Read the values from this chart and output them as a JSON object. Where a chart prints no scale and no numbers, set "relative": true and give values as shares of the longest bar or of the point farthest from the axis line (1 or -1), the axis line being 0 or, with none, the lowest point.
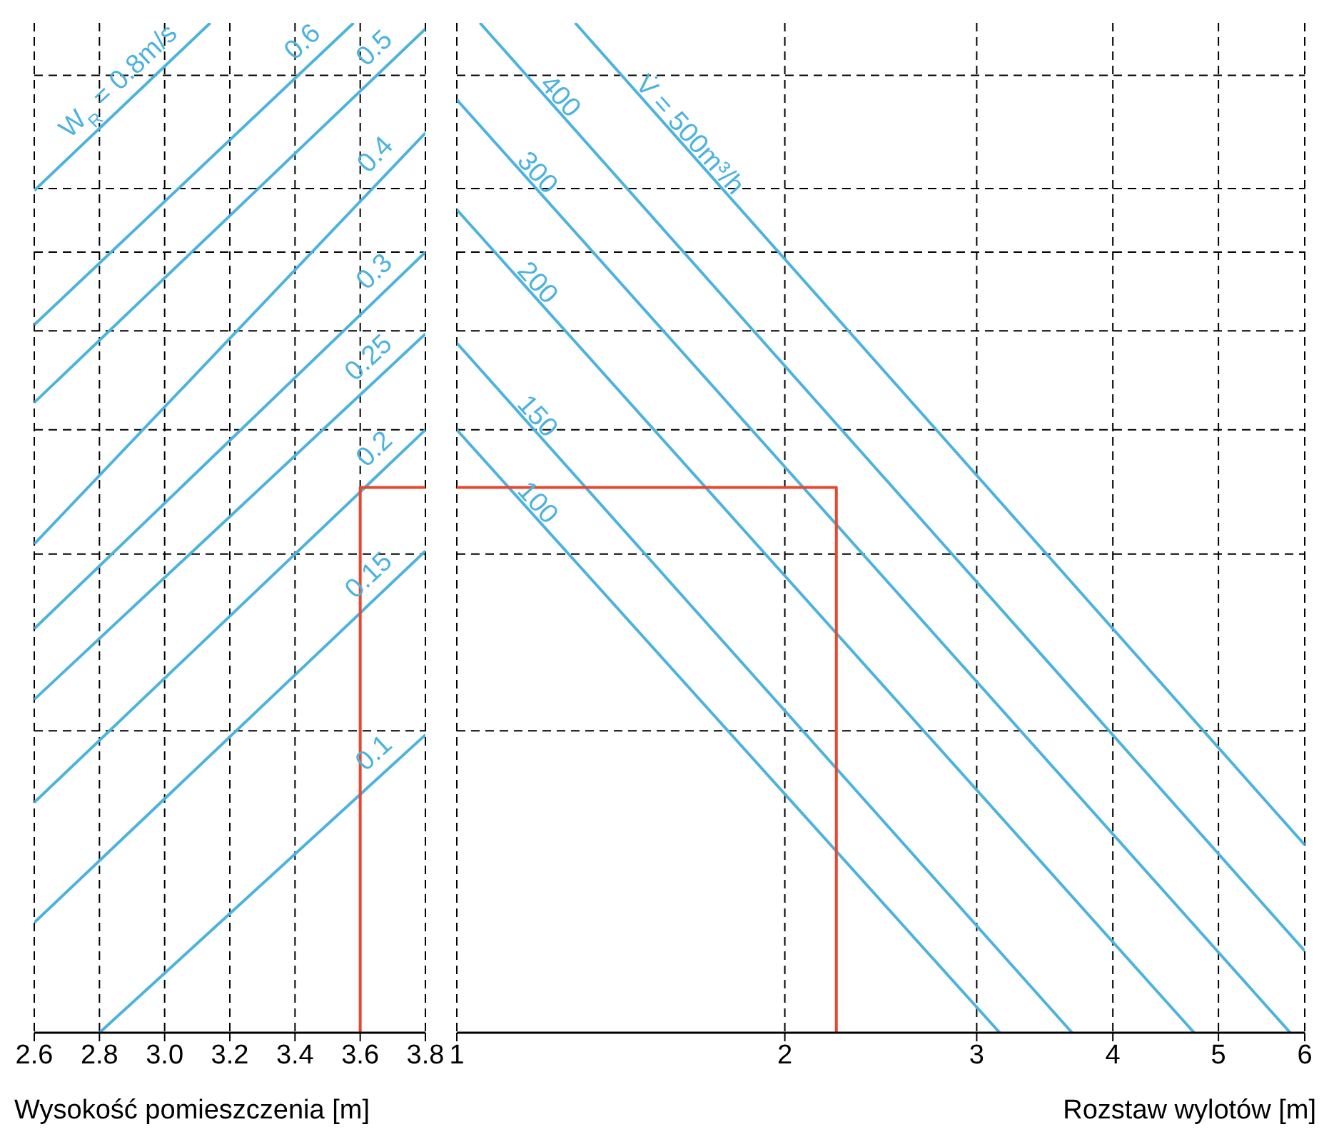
{
  "chart_data": [
    {
      "type": "line",
      "relative": true,
      "xlabel": "Wysokość pomieszczenia [m]",
      "xlim": [
        2.6,
        3.8
      ],
      "xticks": [
        2.6,
        2.8,
        {
          "value": 3,
          "label": "3.0"
        },
        3.2,
        3.4,
        3.6,
        3.8
      ],
      "grid": "x",
      "tick_labels": "x",
      "line_style": "solid",
      "series": [
        {
          "name": "W$_{R}$ = 0.8m/s",
          "color": "#4db3de",
          "x": [
            2.6,
            3.14
          ],
          "values": [
            0.834,
            1
          ]
        },
        {
          "name": "0.6",
          "color": "#4db3de",
          "x": [
            2.6,
            3.58
          ],
          "values": [
            0.701,
            1
          ]
        },
        {
          "name": "0.5",
          "color": "#4db3de",
          "x": [
            2.6,
            3.8
          ],
          "values": [
            0.624,
            0.994
          ]
        },
        {
          "name": "0.4",
          "color": "#4db3de",
          "x": [
            2.6,
            3.8
          ],
          "values": [
            0.484,
            0.891
          ]
        },
        {
          "name": "0.3",
          "color": "#4db3de",
          "x": [
            2.6,
            3.8
          ],
          "values": [
            0.4,
            0.773
          ]
        },
        {
          "name": "0.25",
          "color": "#4db3de",
          "x": [
            2.6,
            3.8
          ],
          "values": [
            0.33,
            0.692
          ]
        },
        {
          "name": "0.2",
          "color": "#4db3de",
          "x": [
            2.6,
            3.8
          ],
          "values": [
            0.228,
            0.597
          ]
        },
        {
          "name": "0.15",
          "color": "#4db3de",
          "x": [
            2.6,
            3.8
          ],
          "values": [
            0.109,
            0.477
          ]
        },
        {
          "name": "0.1",
          "color": "#4db3de",
          "x": [
            2.8,
            3.8
          ],
          "values": [
            0,
            0.295
          ]
        },
        {
          "color": "#e8472f",
          "x": [
            3.6,
            3.6,
            3.8
          ],
          "values": [
            0,
            0.54,
            0.54
          ]
        }
      ],
      "ref_lines": [
        {
          "axis": "y",
          "value": 0.948,
          "color": "#000000",
          "line_style": "dashed"
        },
        {
          "axis": "y",
          "value": 0.836,
          "color": "#000000",
          "line_style": "dashed"
        },
        {
          "axis": "y",
          "value": 0.773,
          "color": "#000000",
          "line_style": "dashed"
        },
        {
          "axis": "y",
          "value": 0.695,
          "color": "#000000",
          "line_style": "dashed"
        },
        {
          "axis": "y",
          "value": 0.597,
          "color": "#000000",
          "line_style": "dashed"
        },
        {
          "axis": "y",
          "value": 0.474,
          "color": "#000000",
          "line_style": "dashed"
        },
        {
          "axis": "y",
          "value": 0.299,
          "color": "#000000",
          "line_style": "dashed"
        }
      ]
    },
    {
      "type": "line",
      "relative": true,
      "xlabel": "Rozstaw wylotów [m]",
      "log": "x",
      "xlim": [
        1,
        6
      ],
      "xticks": [
        1,
        2,
        3,
        4,
        5,
        6
      ],
      "grid": "x",
      "tick_labels": "x",
      "line_style": "solid",
      "series": [
        {
          "name": "V̇ = 500m³/h",
          "color": "#4db3de",
          "x": [
            1.284,
            6
          ],
          "values": [
            1,
            0.186
          ]
        },
        {
          "name": "400",
          "color": "#4db3de",
          "x": [
            1.05,
            6
          ],
          "values": [
            1,
            0.081
          ]
        },
        {
          "name": "300",
          "color": "#4db3de",
          "x": [
            1,
            5.82
          ],
          "values": [
            0.924,
            0
          ]
        },
        {
          "name": "200",
          "color": "#4db3de",
          "x": [
            1,
            4.75
          ],
          "values": [
            0.815,
            0
          ]
        },
        {
          "name": "150",
          "color": "#4db3de",
          "x": [
            1,
            3.67
          ],
          "values": [
            0.683,
            0
          ]
        },
        {
          "name": "100",
          "color": "#4db3de",
          "x": [
            1,
            3.15
          ],
          "values": [
            0.597,
            0
          ]
        },
        {
          "color": "#e8472f",
          "x": [
            1,
            2.23,
            2.23
          ],
          "values": [
            0.54,
            0.54,
            0
          ]
        }
      ],
      "ref_lines": [
        {
          "axis": "y",
          "value": 0.948,
          "color": "#000000",
          "line_style": "dashed"
        },
        {
          "axis": "y",
          "value": 0.836,
          "color": "#000000",
          "line_style": "dashed"
        },
        {
          "axis": "y",
          "value": 0.773,
          "color": "#000000",
          "line_style": "dashed"
        },
        {
          "axis": "y",
          "value": 0.695,
          "color": "#000000",
          "line_style": "dashed"
        },
        {
          "axis": "y",
          "value": 0.597,
          "color": "#000000",
          "line_style": "dashed"
        },
        {
          "axis": "y",
          "value": 0.474,
          "color": "#000000",
          "line_style": "dashed"
        },
        {
          "axis": "y",
          "value": 0.299,
          "color": "#000000",
          "line_style": "dashed"
        }
      ]
    }
  ]
}
